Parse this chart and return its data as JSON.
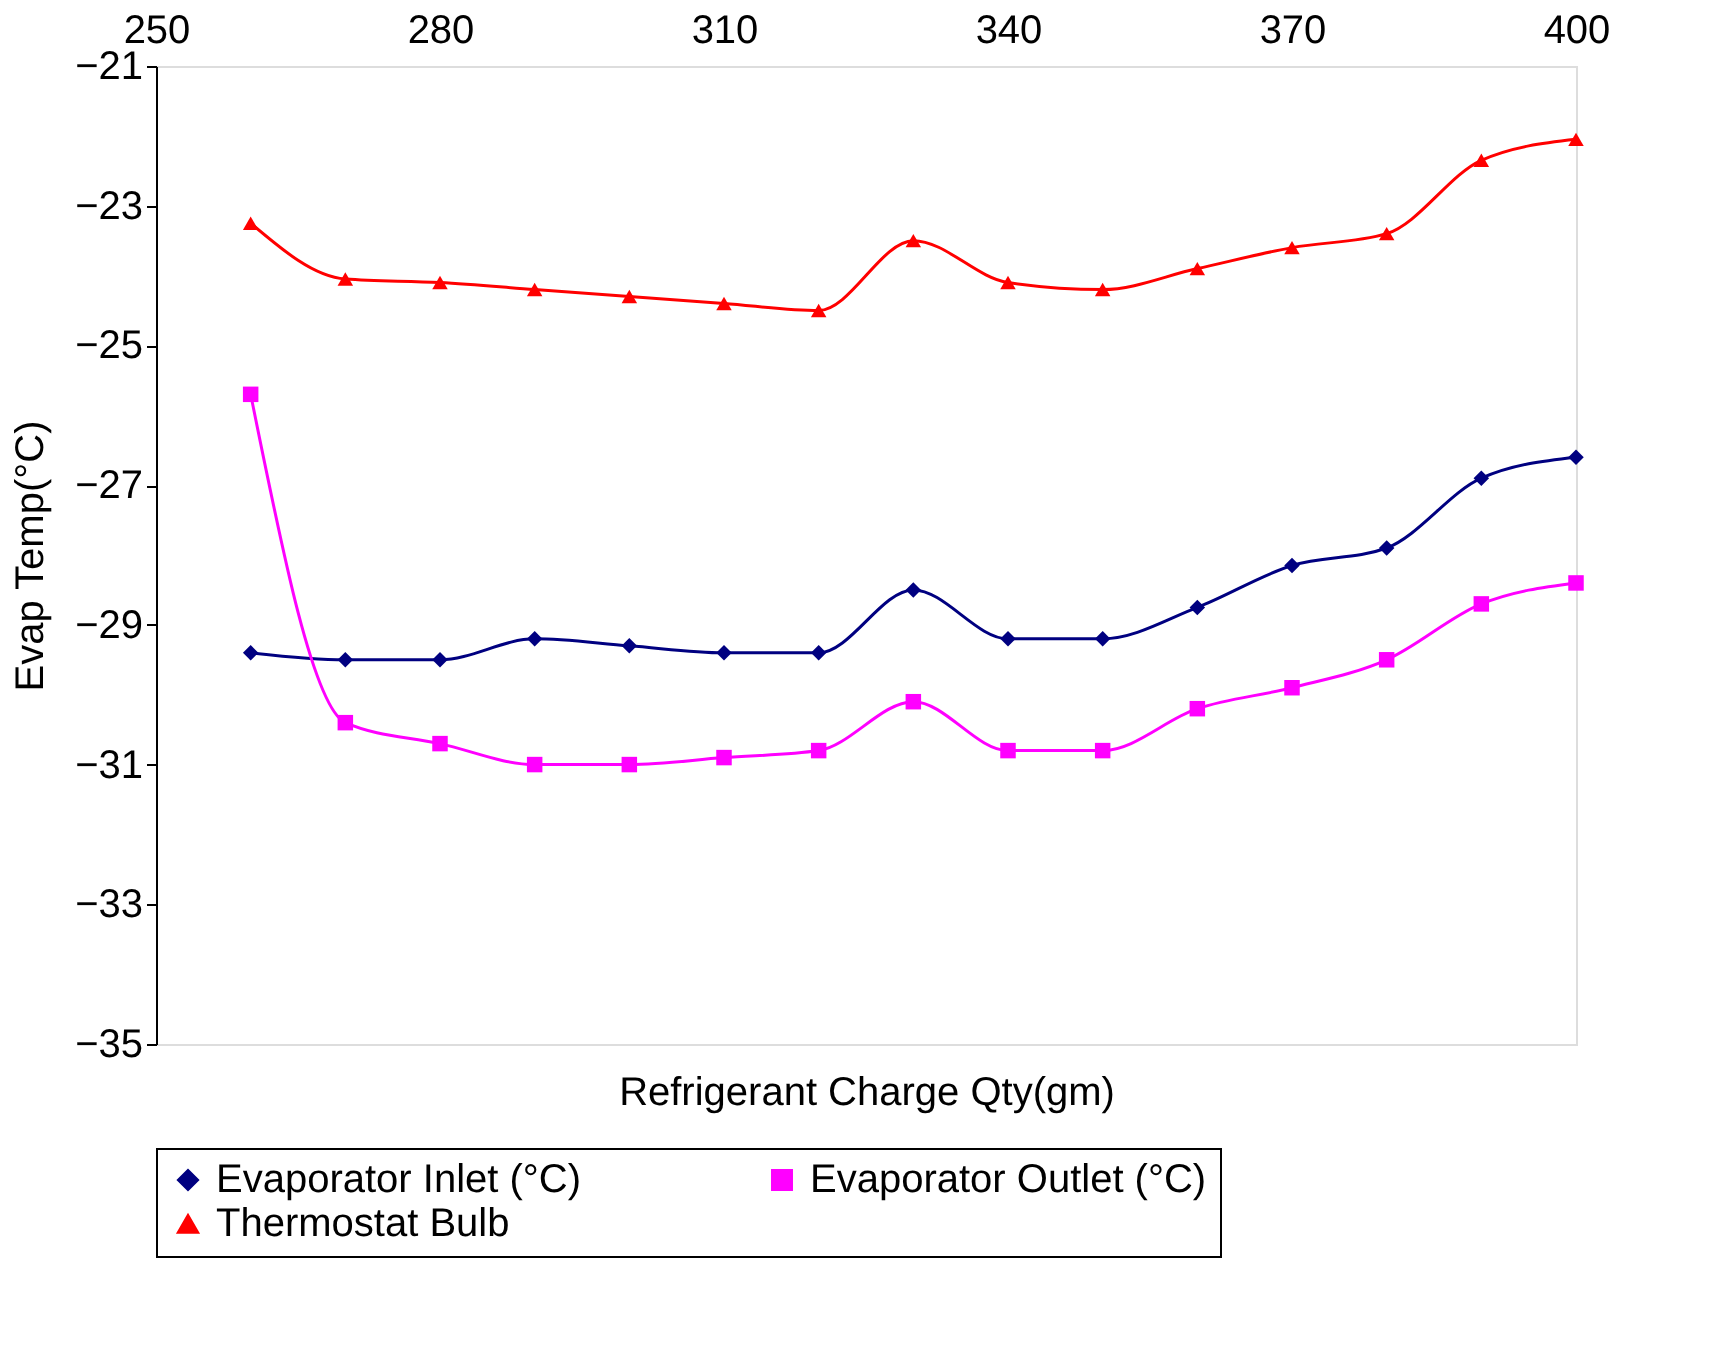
{
  "chart_data": {
    "type": "line",
    "xlabel": "Refrigerant Charge Qty(gm)",
    "ylabel": "Evap Temp(°C)",
    "x": [
      260,
      270,
      280,
      290,
      300,
      310,
      320,
      330,
      340,
      350,
      360,
      370,
      380,
      390,
      400
    ],
    "series": [
      {
        "name": "Evaporator Inlet (°C)",
        "color": "#000080",
        "marker": "diamond",
        "values": [
          -29.4,
          -29.5,
          -29.5,
          -29.2,
          -29.3,
          -29.4,
          -29.4,
          -28.5,
          -29.2,
          -29.2,
          -28.75,
          -28.15,
          -27.9,
          -26.9,
          -26.6
        ]
      },
      {
        "name": "Evaporator Outlet (°C)",
        "color": "#ff00ff",
        "marker": "square",
        "values": [
          -25.7,
          -30.4,
          -30.7,
          -31.0,
          -31.0,
          -30.9,
          -30.8,
          -30.1,
          -30.8,
          -30.8,
          -30.2,
          -29.9,
          -29.5,
          -28.7,
          -28.4
        ]
      },
      {
        "name": "Thermostat Bulb",
        "color": "#ff0000",
        "marker": "triangle",
        "values": [
          -23.25,
          -24.05,
          -24.1,
          -24.2,
          -24.3,
          -24.4,
          -24.5,
          -23.5,
          -24.1,
          -24.2,
          -23.9,
          -23.6,
          -23.4,
          -22.35,
          -22.05
        ]
      }
    ],
    "xlim": [
      250,
      400
    ],
    "xticks": [
      250,
      280,
      310,
      340,
      370,
      400
    ],
    "ylim": [
      -35,
      -21
    ],
    "yticks": [
      -35,
      -33,
      -31,
      -29,
      -27,
      -25,
      -23,
      -21
    ],
    "grid": false,
    "legend": "bottom",
    "line_style": "solid"
  }
}
